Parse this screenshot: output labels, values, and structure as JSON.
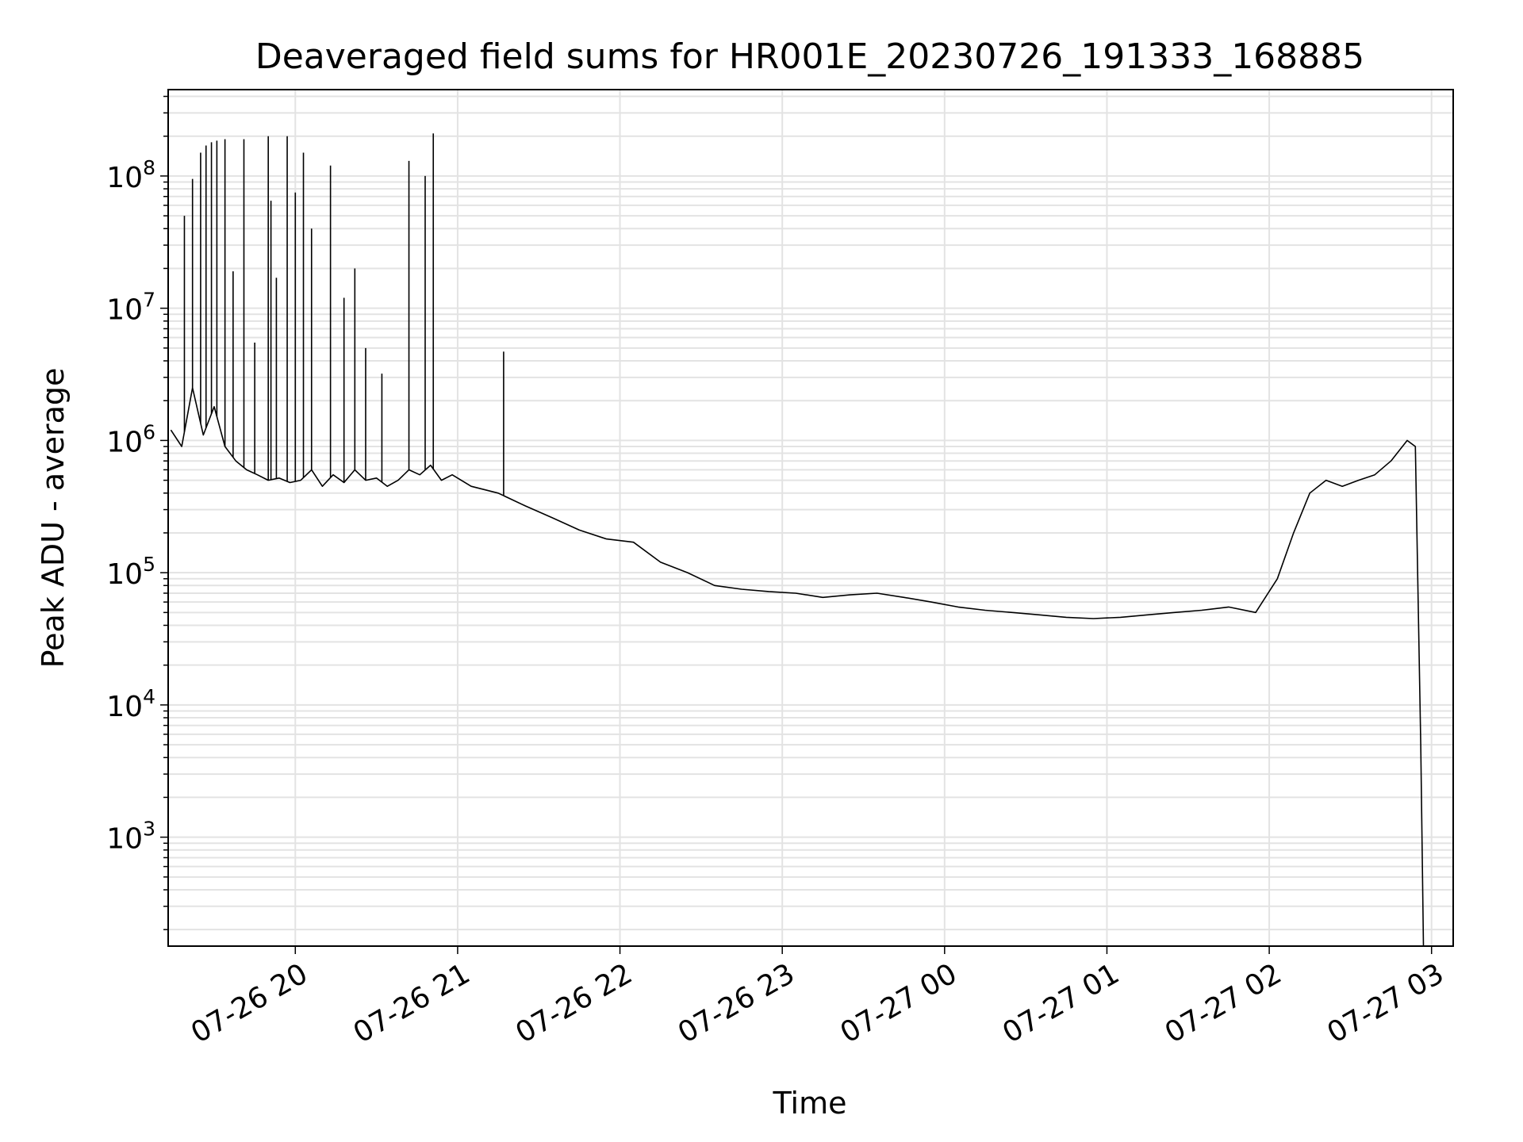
{
  "chart_data": {
    "type": "line",
    "title": "Deaveraged field sums for HR001E_20230726_191333_168885",
    "xlabel": "Time",
    "ylabel": "Peak ADU - average",
    "yscale": "log",
    "grid": true,
    "xlim": [
      "2023-07-26 19:13",
      "2023-07-27 03:08"
    ],
    "ylim": [
      150,
      450000000
    ],
    "x_ticks": [
      {
        "label": "07-26 20",
        "value": "2023-07-26 20:00"
      },
      {
        "label": "07-26 21",
        "value": "2023-07-26 21:00"
      },
      {
        "label": "07-26 22",
        "value": "2023-07-26 22:00"
      },
      {
        "label": "07-26 23",
        "value": "2023-07-26 23:00"
      },
      {
        "label": "07-27 00",
        "value": "2023-07-27 00:00"
      },
      {
        "label": "07-27 01",
        "value": "2023-07-27 01:00"
      },
      {
        "label": "07-27 02",
        "value": "2023-07-27 02:00"
      },
      {
        "label": "07-27 03",
        "value": "2023-07-27 03:00"
      }
    ],
    "y_ticks": [
      {
        "base": "10",
        "exp": "3",
        "value": 1000
      },
      {
        "base": "10",
        "exp": "4",
        "value": 10000
      },
      {
        "base": "10",
        "exp": "5",
        "value": 100000
      },
      {
        "base": "10",
        "exp": "6",
        "value": 1000000
      },
      {
        "base": "10",
        "exp": "7",
        "value": 10000000
      },
      {
        "base": "10",
        "exp": "8",
        "value": 100000000
      }
    ],
    "series": [
      {
        "color": "#000000",
        "x": [
          "2023-07-26 19:14",
          "2023-07-26 19:18",
          "2023-07-26 19:22",
          "2023-07-26 19:26",
          "2023-07-26 19:30",
          "2023-07-26 19:34",
          "2023-07-26 19:38",
          "2023-07-26 19:42",
          "2023-07-26 19:46",
          "2023-07-26 19:50",
          "2023-07-26 19:54",
          "2023-07-26 19:58",
          "2023-07-26 20:02",
          "2023-07-26 20:06",
          "2023-07-26 20:10",
          "2023-07-26 20:14",
          "2023-07-26 20:18",
          "2023-07-26 20:22",
          "2023-07-26 20:26",
          "2023-07-26 20:30",
          "2023-07-26 20:34",
          "2023-07-26 20:38",
          "2023-07-26 20:42",
          "2023-07-26 20:46",
          "2023-07-26 20:50",
          "2023-07-26 20:54",
          "2023-07-26 20:58",
          "2023-07-26 21:05",
          "2023-07-26 21:15",
          "2023-07-26 21:25",
          "2023-07-26 21:35",
          "2023-07-26 21:45",
          "2023-07-26 21:55",
          "2023-07-26 22:05",
          "2023-07-26 22:15",
          "2023-07-26 22:25",
          "2023-07-26 22:35",
          "2023-07-26 22:45",
          "2023-07-26 22:55",
          "2023-07-26 23:05",
          "2023-07-26 23:15",
          "2023-07-26 23:25",
          "2023-07-26 23:35",
          "2023-07-26 23:45",
          "2023-07-26 23:55",
          "2023-07-27 00:05",
          "2023-07-27 00:15",
          "2023-07-27 00:25",
          "2023-07-27 00:35",
          "2023-07-27 00:45",
          "2023-07-27 00:55",
          "2023-07-27 01:05",
          "2023-07-27 01:15",
          "2023-07-27 01:25",
          "2023-07-27 01:35",
          "2023-07-27 01:45",
          "2023-07-27 01:55",
          "2023-07-27 02:03",
          "2023-07-27 02:09",
          "2023-07-27 02:15",
          "2023-07-27 02:21",
          "2023-07-27 02:27",
          "2023-07-27 02:33",
          "2023-07-27 02:39",
          "2023-07-27 02:45",
          "2023-07-27 02:51",
          "2023-07-27 02:54",
          "2023-07-27 02:56",
          "2023-07-27 02:57"
        ],
        "y": [
          1200000,
          900000,
          2500000,
          1100000,
          1800000,
          900000,
          700000,
          600000,
          550000,
          500000,
          520000,
          480000,
          500000,
          600000,
          450000,
          550000,
          480000,
          600000,
          500000,
          520000,
          450000,
          500000,
          600000,
          550000,
          650000,
          500000,
          550000,
          450000,
          400000,
          320000,
          260000,
          210000,
          180000,
          170000,
          120000,
          100000,
          80000,
          75000,
          72000,
          70000,
          65000,
          68000,
          70000,
          65000,
          60000,
          55000,
          52000,
          50000,
          48000,
          46000,
          45000,
          46000,
          48000,
          50000,
          52000,
          55000,
          50000,
          90000,
          200000,
          400000,
          500000,
          450000,
          500000,
          550000,
          700000,
          1000000,
          900000,
          5000,
          150
        ]
      }
    ],
    "spikes": [
      {
        "x": "2023-07-26 19:19",
        "y": 50000000
      },
      {
        "x": "2023-07-26 19:22",
        "y": 95000000
      },
      {
        "x": "2023-07-26 19:25",
        "y": 150000000
      },
      {
        "x": "2023-07-26 19:27",
        "y": 170000000
      },
      {
        "x": "2023-07-26 19:29",
        "y": 180000000
      },
      {
        "x": "2023-07-26 19:31",
        "y": 185000000
      },
      {
        "x": "2023-07-26 19:34",
        "y": 190000000
      },
      {
        "x": "2023-07-26 19:37",
        "y": 19000000
      },
      {
        "x": "2023-07-26 19:41",
        "y": 190000000
      },
      {
        "x": "2023-07-26 19:45",
        "y": 5500000
      },
      {
        "x": "2023-07-26 19:50",
        "y": 200000000
      },
      {
        "x": "2023-07-26 19:51",
        "y": 65000000
      },
      {
        "x": "2023-07-26 19:53",
        "y": 17000000
      },
      {
        "x": "2023-07-26 19:57",
        "y": 200000000
      },
      {
        "x": "2023-07-26 20:00",
        "y": 75000000
      },
      {
        "x": "2023-07-26 20:03",
        "y": 150000000
      },
      {
        "x": "2023-07-26 20:06",
        "y": 40000000
      },
      {
        "x": "2023-07-26 20:13",
        "y": 120000000
      },
      {
        "x": "2023-07-26 20:18",
        "y": 12000000
      },
      {
        "x": "2023-07-26 20:22",
        "y": 20000000
      },
      {
        "x": "2023-07-26 20:26",
        "y": 5000000
      },
      {
        "x": "2023-07-26 20:32",
        "y": 3200000
      },
      {
        "x": "2023-07-26 20:42",
        "y": 130000000
      },
      {
        "x": "2023-07-26 20:48",
        "y": 100000000
      },
      {
        "x": "2023-07-26 20:51",
        "y": 210000000
      },
      {
        "x": "2023-07-26 21:17",
        "y": 4700000
      }
    ]
  }
}
